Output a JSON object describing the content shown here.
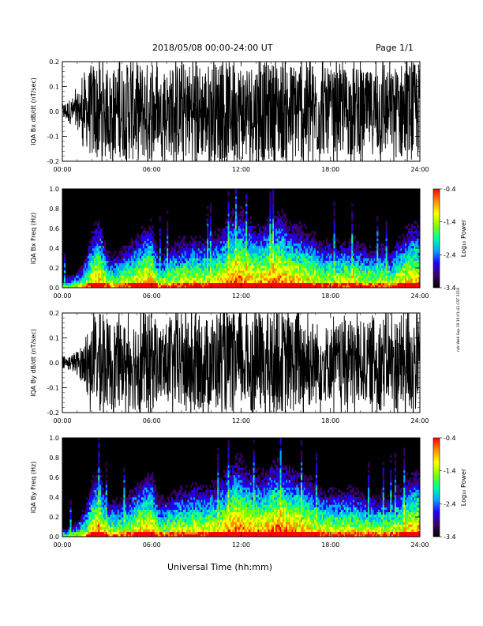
{
  "header": {
    "title": "2018/05/08  00:00-24:00 UT",
    "page": "Page 1/1"
  },
  "footer": {
    "xlabel": "Universal Time (hh:mm)"
  },
  "signature": "ndz Wed Sep 19 19:01:43 CST 2018",
  "colorscale": {
    "stops": [
      "#000000",
      "#3a006a",
      "#2200ff",
      "#00a8ff",
      "#00ff9c",
      "#7dff00",
      "#ffff00",
      "#ff8c00",
      "#ff0000"
    ]
  },
  "chart_data": [
    {
      "type": "line",
      "id": "bx-dbdt",
      "ylabel": "IQA Bx dB/dt (nT/sec)",
      "ylim": [
        -0.2,
        0.2
      ],
      "yticks": [
        "-0.2",
        "-0.1",
        "0.0",
        "0.1",
        "0.2"
      ],
      "xlim": [
        "00:00",
        "24:00"
      ],
      "xticks": [
        "00:00",
        "06:00",
        "12:00",
        "18:00",
        "24:00"
      ],
      "series": [
        {
          "color": "#000000",
          "x_hours": [
            0,
            0.5,
            1,
            1.5,
            2,
            2.5,
            3,
            3.5,
            4,
            4.5,
            5,
            5.5,
            6,
            6.5,
            7,
            7.5,
            8,
            8.5,
            9,
            9.5,
            10,
            10.5,
            11,
            11.5,
            12,
            12.5,
            13,
            13.5,
            14,
            14.5,
            15,
            15.5,
            16,
            16.5,
            17,
            17.5,
            18,
            18.5,
            19,
            19.5,
            20,
            20.5,
            21,
            21.5,
            22,
            22.5,
            23,
            23.5,
            24
          ],
          "amplitude": [
            0.03,
            0.05,
            0.07,
            0.13,
            0.2,
            0.2,
            0.15,
            0.18,
            0.19,
            0.2,
            0.2,
            0.2,
            0.2,
            0.13,
            0.17,
            0.19,
            0.2,
            0.2,
            0.2,
            0.19,
            0.2,
            0.2,
            0.2,
            0.2,
            0.2,
            0.2,
            0.2,
            0.2,
            0.2,
            0.2,
            0.2,
            0.2,
            0.2,
            0.2,
            0.19,
            0.18,
            0.17,
            0.16,
            0.18,
            0.19,
            0.17,
            0.16,
            0.18,
            0.2,
            0.15,
            0.2,
            0.2,
            0.2,
            0.2
          ]
        }
      ]
    },
    {
      "type": "heatmap",
      "id": "bx-freq",
      "ylabel": "IQA Bx Freq (Hz)",
      "ylim": [
        0,
        1.0
      ],
      "yticks": [
        "0.0",
        "0.2",
        "0.4",
        "0.6",
        "0.8",
        "1.0"
      ],
      "xlim": [
        "00:00",
        "24:00"
      ],
      "xticks": [
        "00:00",
        "06:00",
        "12:00",
        "18:00",
        "24:00"
      ],
      "colorbar": {
        "label": "Log₁₀ Power",
        "range": [
          -3.4,
          -0.4
        ],
        "ticks": [
          "-0.4",
          "-1.4",
          "-2.4",
          "-3.4"
        ]
      },
      "x_hours": [
        0,
        0.5,
        1,
        1.5,
        2,
        2.5,
        3,
        3.5,
        4,
        4.5,
        5,
        5.5,
        6,
        6.5,
        7,
        7.5,
        8,
        8.5,
        9,
        9.5,
        10,
        10.5,
        11,
        11.5,
        12,
        12.5,
        13,
        13.5,
        14,
        14.5,
        15,
        15.5,
        16,
        16.5,
        17,
        17.5,
        18,
        18.5,
        19,
        19.5,
        20,
        20.5,
        21,
        21.5,
        22,
        22.5,
        23,
        23.5,
        24
      ],
      "activity": [
        0.1,
        0.15,
        0.2,
        0.35,
        0.7,
        0.85,
        0.45,
        0.4,
        0.5,
        0.55,
        0.65,
        0.75,
        0.8,
        0.4,
        0.5,
        0.55,
        0.6,
        0.6,
        0.65,
        0.6,
        0.65,
        0.7,
        0.8,
        0.95,
        0.95,
        0.85,
        0.75,
        0.8,
        0.9,
        0.95,
        0.85,
        0.8,
        0.75,
        0.7,
        0.65,
        0.55,
        0.6,
        0.55,
        0.6,
        0.6,
        0.55,
        0.5,
        0.5,
        0.55,
        0.45,
        0.6,
        0.7,
        0.8,
        0.75
      ]
    },
    {
      "type": "line",
      "id": "by-dbdt",
      "ylabel": "IQA By dB/dt (nT/sec)",
      "ylim": [
        -0.2,
        0.2
      ],
      "yticks": [
        "-0.2",
        "-0.1",
        "0.0",
        "0.1",
        "0.2"
      ],
      "xlim": [
        "00:00",
        "24:00"
      ],
      "xticks": [
        "00:00",
        "06:00",
        "12:00",
        "18:00",
        "24:00"
      ],
      "series": [
        {
          "color": "#000000",
          "x_hours": [
            0,
            0.5,
            1,
            1.5,
            2,
            2.5,
            3,
            3.5,
            4,
            4.5,
            5,
            5.5,
            6,
            6.5,
            7,
            7.5,
            8,
            8.5,
            9,
            9.5,
            10,
            10.5,
            11,
            11.5,
            12,
            12.5,
            13,
            13.5,
            14,
            14.5,
            15,
            15.5,
            16,
            16.5,
            17,
            17.5,
            18,
            18.5,
            19,
            19.5,
            20,
            20.5,
            21,
            21.5,
            22,
            22.5,
            23,
            23.5,
            24
          ],
          "amplitude": [
            0.02,
            0.03,
            0.05,
            0.08,
            0.15,
            0.2,
            0.18,
            0.17,
            0.15,
            0.18,
            0.2,
            0.2,
            0.2,
            0.14,
            0.16,
            0.18,
            0.2,
            0.2,
            0.2,
            0.18,
            0.19,
            0.2,
            0.2,
            0.2,
            0.19,
            0.19,
            0.2,
            0.2,
            0.2,
            0.2,
            0.2,
            0.2,
            0.2,
            0.19,
            0.17,
            0.16,
            0.15,
            0.16,
            0.17,
            0.19,
            0.17,
            0.16,
            0.18,
            0.2,
            0.15,
            0.2,
            0.2,
            0.2,
            0.2
          ]
        }
      ]
    },
    {
      "type": "heatmap",
      "id": "by-freq",
      "ylabel": "IQA By Freq (Hz)",
      "ylim": [
        0,
        1.0
      ],
      "yticks": [
        "0.0",
        "0.2",
        "0.4",
        "0.6",
        "0.8",
        "1.0"
      ],
      "xlim": [
        "00:00",
        "24:00"
      ],
      "xticks": [
        "00:00",
        "06:00",
        "12:00",
        "18:00",
        "24:00"
      ],
      "colorbar": {
        "label": "Log₁₀ Power",
        "range": [
          -3.4,
          -0.4
        ],
        "ticks": [
          "-0.4",
          "-1.4",
          "-2.4",
          "-3.4"
        ]
      },
      "x_hours": [
        0,
        0.5,
        1,
        1.5,
        2,
        2.5,
        3,
        3.5,
        4,
        4.5,
        5,
        5.5,
        6,
        6.5,
        7,
        7.5,
        8,
        8.5,
        9,
        9.5,
        10,
        10.5,
        11,
        11.5,
        12,
        12.5,
        13,
        13.5,
        14,
        14.5,
        15,
        15.5,
        16,
        16.5,
        17,
        17.5,
        18,
        18.5,
        19,
        19.5,
        20,
        20.5,
        21,
        21.5,
        22,
        22.5,
        23,
        23.5,
        24
      ],
      "activity": [
        0.1,
        0.12,
        0.2,
        0.35,
        0.7,
        0.85,
        0.45,
        0.45,
        0.5,
        0.55,
        0.65,
        0.75,
        0.8,
        0.45,
        0.5,
        0.55,
        0.6,
        0.6,
        0.65,
        0.6,
        0.65,
        0.7,
        0.8,
        0.95,
        0.95,
        0.85,
        0.8,
        0.8,
        0.9,
        0.95,
        0.9,
        0.85,
        0.8,
        0.75,
        0.65,
        0.6,
        0.6,
        0.55,
        0.6,
        0.6,
        0.55,
        0.5,
        0.5,
        0.55,
        0.5,
        0.6,
        0.7,
        0.8,
        0.8
      ]
    }
  ]
}
